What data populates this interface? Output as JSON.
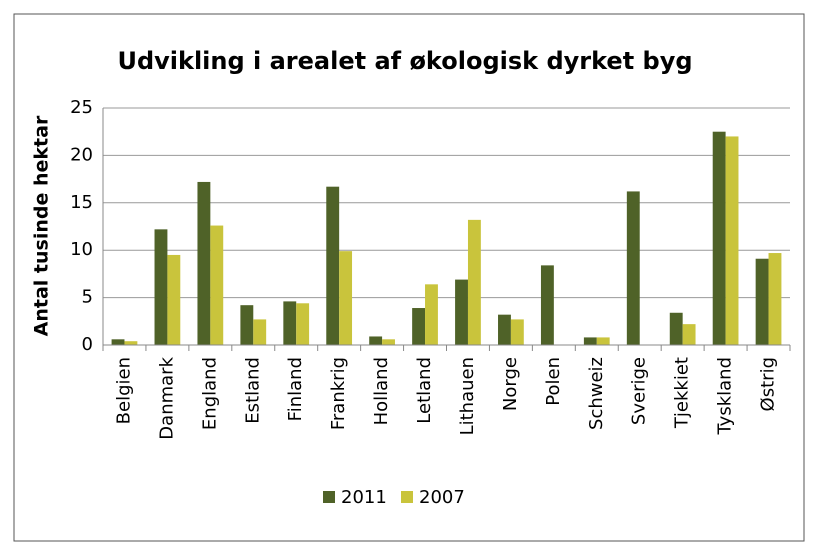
{
  "chart_data": {
    "type": "bar",
    "title": "Udvikling i arealet af økologisk dyrket byg",
    "y_label": "Antal tusinde hektar",
    "categories": [
      "Belgien",
      "Danmark",
      "England",
      "Estland",
      "Finland",
      "Frankrig",
      "Holland",
      "Letland",
      "Lithauen",
      "Norge",
      "Polen",
      "Schweiz",
      "Sverige",
      "Tjekkiet",
      "Tyskland",
      "Østrig"
    ],
    "series": [
      {
        "name": "2011",
        "color": "#4f6228",
        "values": [
          0.6,
          12.2,
          17.2,
          4.2,
          4.6,
          16.7,
          0.9,
          3.9,
          6.9,
          3.2,
          8.4,
          0.8,
          16.2,
          3.4,
          22.5,
          9.1
        ]
      },
      {
        "name": "2007",
        "color": "#c9c43c",
        "values": [
          0.4,
          9.5,
          12.6,
          2.7,
          4.4,
          9.9,
          0.6,
          6.4,
          13.2,
          2.7,
          null,
          0.8,
          null,
          2.2,
          22.0,
          9.7
        ]
      }
    ],
    "ylim": [
      0,
      25
    ],
    "yticks": [
      0,
      5,
      10,
      15,
      20,
      25
    ],
    "grid": true,
    "legend": "bottom"
  }
}
